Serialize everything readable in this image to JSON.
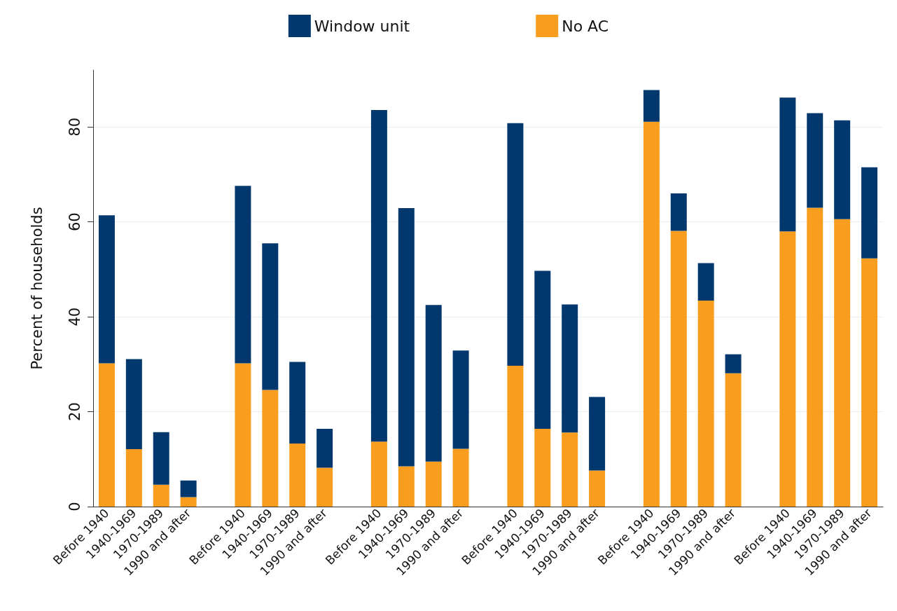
{
  "chart_data": {
    "type": "bar",
    "stacked": true,
    "ylabel": "Percent of households",
    "categories": [
      "Before 1940",
      "1940-1969",
      "1970-1989",
      "1990 and after",
      null,
      "Before 1940",
      "1940-1969",
      "1970-1989",
      "1990 and after",
      null,
      "Before 1940",
      "1940-1969",
      "1970-1989",
      "1990 and after",
      null,
      "Before 1940",
      "1940-1969",
      "1970-1989",
      "1990 and after",
      null,
      "Before 1940",
      "1940-1969",
      "1970-1989",
      "1990 and after",
      null,
      "Before 1940",
      "1940-1969",
      "1970-1989",
      "1990 and after"
    ],
    "series": [
      {
        "name": "No AC",
        "color": "#f99d1e",
        "values": [
          30.2,
          12.1,
          4.6,
          2.0,
          null,
          30.2,
          24.6,
          13.3,
          8.2,
          null,
          13.7,
          8.5,
          9.5,
          12.2,
          null,
          29.7,
          16.4,
          15.6,
          7.6,
          null,
          81.1,
          58.1,
          43.4,
          28.1,
          null,
          58.0,
          63.0,
          60.6,
          52.3
        ]
      },
      {
        "name": "Window unit",
        "color": "#02386e",
        "values": [
          31.2,
          19.0,
          11.1,
          3.5,
          null,
          37.4,
          30.9,
          17.2,
          8.2,
          null,
          69.9,
          54.4,
          33.0,
          20.7,
          null,
          51.1,
          33.3,
          27.0,
          15.5,
          null,
          6.7,
          7.9,
          7.9,
          4.0,
          null,
          28.2,
          19.9,
          20.8,
          19.2
        ]
      }
    ],
    "ylim": [
      0,
      92
    ],
    "yticks": [
      0,
      20,
      40,
      60,
      80
    ],
    "grid": "y",
    "legend": "top"
  }
}
